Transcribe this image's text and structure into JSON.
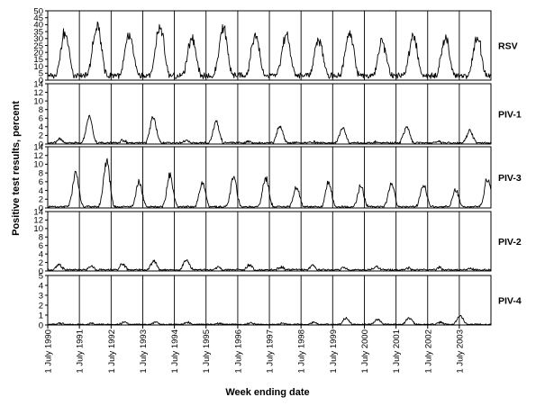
{
  "chart_data": {
    "type": "line",
    "ylabel": "Positive test results, percent",
    "xlabel": "Week ending date",
    "x_tick_labels": [
      "1 July 1990",
      "1 July 1991",
      "1 July 1992",
      "1 July 1993",
      "1 July 1994",
      "1 July 1995",
      "1 July 1996",
      "1 July 1997",
      "1 July 1998",
      "1 July 1999",
      "1 July 2000",
      "1 July 2001",
      "1 July 2002",
      "1 July 2003"
    ],
    "x_range": [
      "1990-07-01",
      "2004-06-30"
    ],
    "grid": false,
    "panels": [
      {
        "name": "RSV",
        "ylim": [
          0,
          50
        ],
        "yticks": [
          0,
          5,
          10,
          15,
          20,
          25,
          30,
          35,
          40,
          45,
          50
        ],
        "seasons": [
          {
            "peak_date": "1991-01-15",
            "peak_value": 38
          },
          {
            "peak_date": "1992-01-20",
            "peak_value": 44
          },
          {
            "peak_date": "1993-01-25",
            "peak_value": 35
          },
          {
            "peak_date": "1994-01-15",
            "peak_value": 43
          },
          {
            "peak_date": "1995-01-20",
            "peak_value": 34
          },
          {
            "peak_date": "1996-01-15",
            "peak_value": 42
          },
          {
            "peak_date": "1997-01-20",
            "peak_value": 35
          },
          {
            "peak_date": "1998-01-10",
            "peak_value": 36
          },
          {
            "peak_date": "1999-01-20",
            "peak_value": 33
          },
          {
            "peak_date": "2000-01-10",
            "peak_value": 39
          },
          {
            "peak_date": "2001-01-25",
            "peak_value": 30
          },
          {
            "peak_date": "2002-01-15",
            "peak_value": 35
          },
          {
            "peak_date": "2003-01-20",
            "peak_value": 33
          },
          {
            "peak_date": "2004-01-25",
            "peak_value": 34
          }
        ]
      },
      {
        "name": "PIV-1",
        "ylim": [
          0,
          14
        ],
        "yticks": [
          0,
          2,
          4,
          6,
          8,
          10,
          12,
          14
        ],
        "seasons": [
          {
            "peak_date": "1990-11-10",
            "peak_value": 1.2
          },
          {
            "peak_date": "1991-10-25",
            "peak_value": 7.0
          },
          {
            "peak_date": "1992-11-15",
            "peak_value": 1.0
          },
          {
            "peak_date": "1993-10-30",
            "peak_value": 6.8
          },
          {
            "peak_date": "1994-11-10",
            "peak_value": 0.8
          },
          {
            "peak_date": "1995-10-25",
            "peak_value": 5.5
          },
          {
            "peak_date": "1996-11-10",
            "peak_value": 0.7
          },
          {
            "peak_date": "1997-10-30",
            "peak_value": 4.5
          },
          {
            "peak_date": "1998-11-10",
            "peak_value": 0.6
          },
          {
            "peak_date": "1999-10-25",
            "peak_value": 4.2
          },
          {
            "peak_date": "2000-11-10",
            "peak_value": 0.5
          },
          {
            "peak_date": "2001-10-30",
            "peak_value": 4.4
          },
          {
            "peak_date": "2002-11-10",
            "peak_value": 0.5
          },
          {
            "peak_date": "2003-10-30",
            "peak_value": 3.5
          }
        ]
      },
      {
        "name": "PIV-3",
        "ylim": [
          0,
          14
        ],
        "yticks": [
          0,
          2,
          4,
          6,
          8,
          10,
          12,
          14
        ],
        "seasons": [
          {
            "peak_date": "1991-05-20",
            "peak_value": 8.5
          },
          {
            "peak_date": "1992-05-10",
            "peak_value": 11.8
          },
          {
            "peak_date": "1993-05-20",
            "peak_value": 6.5
          },
          {
            "peak_date": "1994-05-10",
            "peak_value": 8.2
          },
          {
            "peak_date": "1995-05-20",
            "peak_value": 6.0
          },
          {
            "peak_date": "1996-05-15",
            "peak_value": 7.5
          },
          {
            "peak_date": "1997-05-20",
            "peak_value": 7.5
          },
          {
            "peak_date": "1998-05-10",
            "peak_value": 5.2
          },
          {
            "peak_date": "1999-05-15",
            "peak_value": 6.2
          },
          {
            "peak_date": "2000-05-20",
            "peak_value": 5.5
          },
          {
            "peak_date": "2001-05-10",
            "peak_value": 6.0
          },
          {
            "peak_date": "2002-05-15",
            "peak_value": 5.8
          },
          {
            "peak_date": "2003-05-20",
            "peak_value": 4.5
          },
          {
            "peak_date": "2004-05-20",
            "peak_value": 7.5
          }
        ]
      },
      {
        "name": "PIV-2",
        "ylim": [
          0,
          14
        ],
        "yticks": [
          0,
          2,
          4,
          6,
          8,
          10,
          12,
          14
        ],
        "seasons": [
          {
            "peak_date": "1990-11-10",
            "peak_value": 1.5
          },
          {
            "peak_date": "1991-11-15",
            "peak_value": 1.2
          },
          {
            "peak_date": "1992-11-10",
            "peak_value": 1.8
          },
          {
            "peak_date": "1993-11-05",
            "peak_value": 2.5
          },
          {
            "peak_date": "1994-11-15",
            "peak_value": 2.8
          },
          {
            "peak_date": "1995-11-10",
            "peak_value": 1.0
          },
          {
            "peak_date": "1996-11-15",
            "peak_value": 1.6
          },
          {
            "peak_date": "1997-11-10",
            "peak_value": 1.0
          },
          {
            "peak_date": "1998-11-10",
            "peak_value": 1.4
          },
          {
            "peak_date": "1999-11-10",
            "peak_value": 0.8
          },
          {
            "peak_date": "2000-11-15",
            "peak_value": 1.2
          },
          {
            "peak_date": "2001-11-10",
            "peak_value": 0.8
          },
          {
            "peak_date": "2002-11-10",
            "peak_value": 0.9
          },
          {
            "peak_date": "2003-11-10",
            "peak_value": 0.6
          }
        ]
      },
      {
        "name": "PIV-4",
        "ylim": [
          0,
          5
        ],
        "yticks": [
          0,
          1,
          2,
          3,
          4,
          5
        ],
        "seasons": [
          {
            "peak_date": "1990-12-01",
            "peak_value": 0.2
          },
          {
            "peak_date": "1991-12-01",
            "peak_value": 0.2
          },
          {
            "peak_date": "1992-12-01",
            "peak_value": 0.3
          },
          {
            "peak_date": "1993-12-01",
            "peak_value": 0.3
          },
          {
            "peak_date": "1994-12-01",
            "peak_value": 0.3
          },
          {
            "peak_date": "1995-12-01",
            "peak_value": 0.2
          },
          {
            "peak_date": "1996-12-01",
            "peak_value": 0.2
          },
          {
            "peak_date": "1997-12-01",
            "peak_value": 0.2
          },
          {
            "peak_date": "1998-12-01",
            "peak_value": 0.3
          },
          {
            "peak_date": "1999-12-01",
            "peak_value": 0.8
          },
          {
            "peak_date": "2000-12-01",
            "peak_value": 0.6
          },
          {
            "peak_date": "2001-12-01",
            "peak_value": 0.8
          },
          {
            "peak_date": "2002-12-01",
            "peak_value": 0.3
          },
          {
            "peak_date": "2003-07-10",
            "peak_value": 1.0
          }
        ]
      }
    ]
  }
}
